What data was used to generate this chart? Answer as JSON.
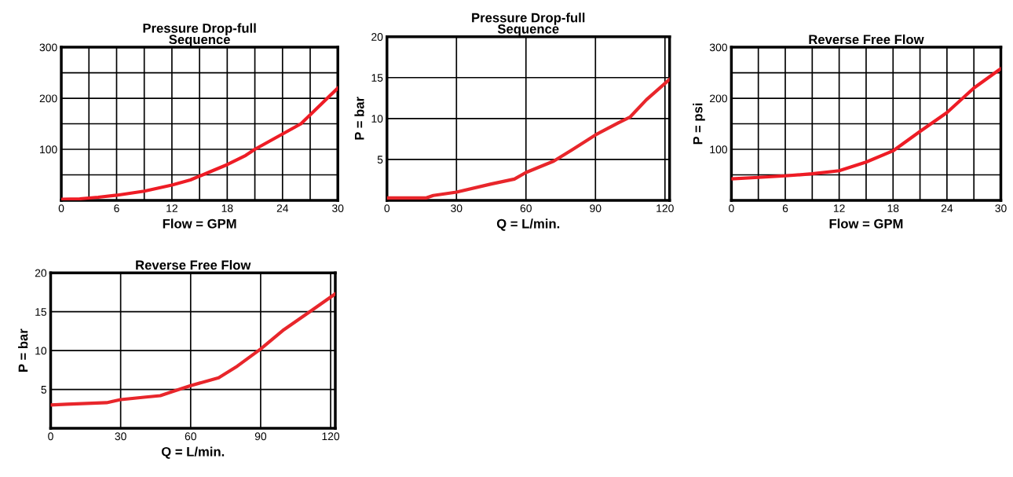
{
  "chart_data": [
    {
      "type": "line",
      "title": "Pressure Drop-full\nSequence",
      "xlabel": "Flow = GPM",
      "xlim": [
        0,
        30
      ],
      "ylim": [
        0,
        300
      ],
      "xticks": [
        0,
        {
          "value": 3,
          "label": null
        },
        6,
        {
          "value": 9,
          "label": null
        },
        12,
        {
          "value": 15,
          "label": null
        },
        18,
        {
          "value": 21,
          "label": null
        },
        24,
        {
          "value": 27,
          "label": null
        },
        30
      ],
      "yticks": [
        {
          "value": 50,
          "label": null
        },
        100,
        {
          "value": 150,
          "label": null
        },
        200,
        {
          "value": 250,
          "label": null
        },
        300
      ],
      "grid": true,
      "series": [
        {
          "color": "#ee1c25",
          "x": [
            0,
            2,
            4,
            6,
            9,
            12,
            14,
            16,
            18,
            20,
            21,
            24,
            26,
            28,
            30
          ],
          "values": [
            2,
            3,
            6,
            10,
            18,
            30,
            40,
            55,
            70,
            88,
            100,
            130,
            150,
            185,
            220
          ]
        }
      ]
    },
    {
      "type": "line",
      "title": "Pressure Drop-full\nSequence",
      "xlabel": "Q = L/min.",
      "ylabel": "P = bar",
      "xlim": [
        0,
        122
      ],
      "ylim": [
        0,
        20
      ],
      "xticks": [
        0,
        30,
        60,
        90,
        120
      ],
      "yticks": [
        5,
        10,
        15,
        20
      ],
      "grid": true,
      "series": [
        {
          "color": "#e8262b",
          "x": [
            0,
            17,
            20,
            30,
            45,
            55,
            60,
            72,
            80,
            90,
            100,
            105,
            112,
            122
          ],
          "values": [
            0.3,
            0.3,
            0.6,
            1.0,
            2.0,
            2.6,
            3.4,
            4.8,
            6.2,
            8,
            9.5,
            10.2,
            12.3,
            14.8
          ]
        }
      ]
    },
    {
      "type": "line",
      "title": "Reverse Free Flow",
      "xlabel": "Flow = GPM",
      "ylabel": "P = psi",
      "xlim": [
        0,
        30
      ],
      "ylim": [
        0,
        300
      ],
      "xticks": [
        0,
        {
          "value": 3,
          "label": null
        },
        6,
        {
          "value": 9,
          "label": null
        },
        12,
        {
          "value": 15,
          "label": null
        },
        18,
        {
          "value": 21,
          "label": null
        },
        24,
        {
          "value": 27,
          "label": null
        },
        30
      ],
      "yticks": [
        {
          "value": 50,
          "label": null
        },
        100,
        {
          "value": 150,
          "label": null
        },
        200,
        {
          "value": 250,
          "label": null
        },
        300
      ],
      "grid": true,
      "series": [
        {
          "color": "#ee1c25",
          "x": [
            0,
            3,
            6,
            9,
            12,
            15,
            18,
            21,
            24,
            27,
            30
          ],
          "values": [
            42,
            45,
            48,
            52,
            58,
            75,
            97,
            135,
            172,
            220,
            258
          ]
        }
      ]
    },
    {
      "type": "line",
      "title": "Reverse Free Flow",
      "xlabel": "Q = L/min.",
      "ylabel": "P = bar",
      "xlim": [
        0,
        122
      ],
      "ylim": [
        0,
        20
      ],
      "xticks": [
        0,
        30,
        60,
        90,
        120
      ],
      "yticks": [
        5,
        10,
        15,
        20
      ],
      "grid": true,
      "series": [
        {
          "color": "#e8262b",
          "x": [
            0,
            7,
            24,
            30,
            40,
            47,
            52,
            60,
            72,
            80,
            90,
            100,
            112,
            122
          ],
          "values": [
            3.0,
            3.1,
            3.3,
            3.7,
            4.0,
            4.2,
            4.7,
            5.5,
            6.5,
            8,
            10.2,
            12.7,
            15.2,
            17.3
          ]
        }
      ]
    }
  ]
}
